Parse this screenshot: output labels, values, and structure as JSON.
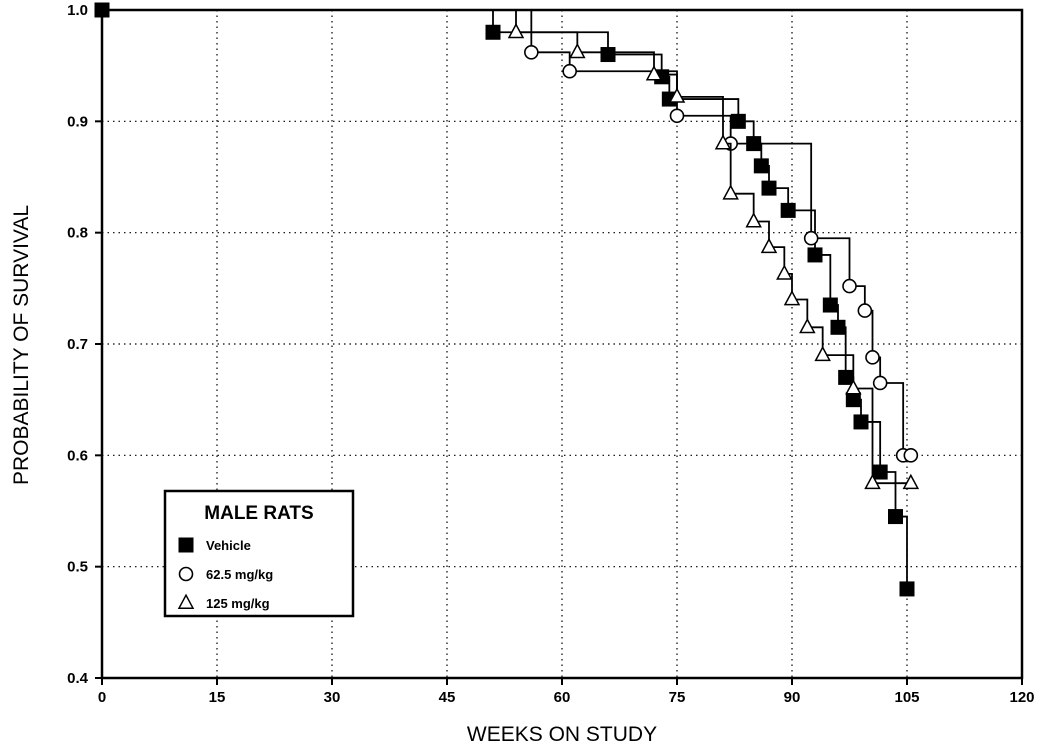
{
  "chart_data": {
    "type": "line",
    "step": true,
    "xlabel": "WEEKS ON STUDY",
    "ylabel": "PROBABILITY OF SURVIVAL",
    "xlim": [
      0,
      120
    ],
    "ylim": [
      0.4,
      1.0
    ],
    "xticks": [
      0,
      15,
      30,
      45,
      60,
      75,
      90,
      105,
      120
    ],
    "xtick_labels": [
      "0",
      "15",
      "30",
      "45",
      "60",
      "75",
      "90",
      "105",
      "120"
    ],
    "yticks": [
      0.4,
      0.5,
      0.6,
      0.7,
      0.8,
      0.9,
      1.0
    ],
    "ytick_labels": [
      "0.4",
      "0.5",
      "0.6",
      "0.7",
      "0.8",
      "0.9",
      "1.0"
    ],
    "grid": true,
    "legend": {
      "title": "MALE RATS",
      "position": "bottom-left"
    },
    "series": [
      {
        "name": "Vehicle",
        "marker": "filled-square",
        "x": [
          0,
          51,
          66,
          73,
          74,
          83,
          85,
          86,
          87,
          89.5,
          93,
          95,
          96,
          97,
          98,
          99,
          101.5,
          103.5,
          105
        ],
        "y": [
          1.0,
          0.98,
          0.96,
          0.94,
          0.92,
          0.9,
          0.88,
          0.86,
          0.84,
          0.82,
          0.78,
          0.735,
          0.715,
          0.67,
          0.65,
          0.63,
          0.585,
          0.545,
          0.48
        ]
      },
      {
        "name": "62.5 mg/kg",
        "marker": "open-circle",
        "x": [
          56,
          61,
          75,
          82,
          92.5,
          97.5,
          99.5,
          100.5,
          101.5,
          104.5,
          105.5
        ],
        "y": [
          0.962,
          0.945,
          0.905,
          0.88,
          0.795,
          0.752,
          0.73,
          0.688,
          0.665,
          0.6,
          0.6
        ]
      },
      {
        "name": "125 mg/kg",
        "marker": "open-triangle",
        "x": [
          54,
          62,
          72,
          75,
          81,
          82,
          85,
          87,
          89,
          90,
          92,
          94,
          98,
          100.5,
          105.5
        ],
        "y": [
          0.98,
          0.962,
          0.942,
          0.922,
          0.88,
          0.835,
          0.81,
          0.787,
          0.763,
          0.74,
          0.715,
          0.69,
          0.66,
          0.575,
          0.575
        ]
      }
    ]
  }
}
